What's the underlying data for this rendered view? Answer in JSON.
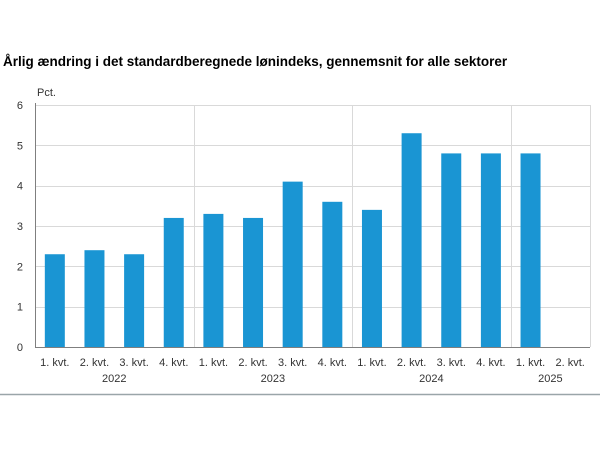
{
  "chart_data": {
    "type": "bar",
    "title": "Årlig ændring i det standardberegnede lønindeks, gennemsnit for alle sektorer",
    "ylabel": "Pct.",
    "ylim": [
      0,
      6
    ],
    "yticks": [
      0,
      1,
      2,
      3,
      4,
      5,
      6
    ],
    "categories": [
      "1. kvt.",
      "2. kvt.",
      "3. kvt.",
      "4. kvt.",
      "1. kvt.",
      "2. kvt.",
      "3. kvt.",
      "4. kvt.",
      "1. kvt.",
      "2. kvt.",
      "3. kvt.",
      "4. kvt.",
      "1. kvt.",
      "2. kvt."
    ],
    "years": [
      "2022",
      "2023",
      "2024",
      "2025"
    ],
    "values": [
      2.3,
      2.4,
      2.3,
      3.2,
      3.3,
      3.2,
      4.1,
      3.6,
      3.4,
      5.3,
      4.8,
      4.8,
      4.8,
      null
    ],
    "grid": true,
    "colors": {
      "bar": "#1a95d3",
      "grid": "#d9d9d9",
      "axis": "#7f7f7f",
      "divider": "#9aa5a9"
    }
  }
}
